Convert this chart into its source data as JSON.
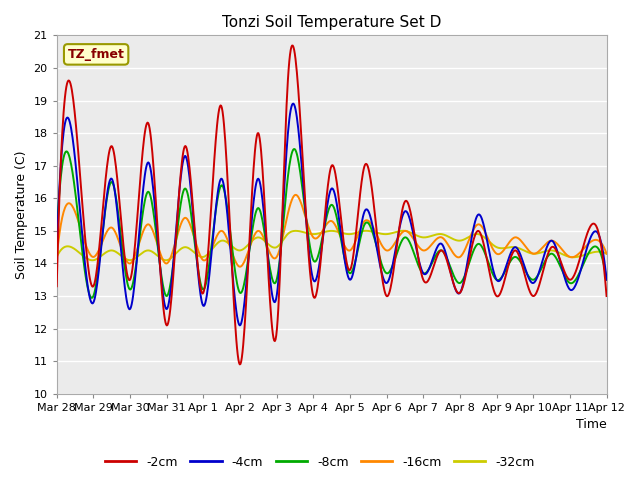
{
  "title": "Tonzi Soil Temperature Set D",
  "xlabel": "Time",
  "ylabel": "Soil Temperature (C)",
  "ylim": [
    10.0,
    21.0
  ],
  "yticks": [
    10.0,
    11.0,
    12.0,
    13.0,
    14.0,
    15.0,
    16.0,
    17.0,
    18.0,
    19.0,
    20.0,
    21.0
  ],
  "background_color": "#ebebeb",
  "grid_color": "#ffffff",
  "line_colors": {
    "-2cm": "#cc0000",
    "-4cm": "#0000cc",
    "-8cm": "#00aa00",
    "-16cm": "#ff8800",
    "-32cm": "#cccc00"
  },
  "legend_labels": [
    "-2cm",
    "-4cm",
    "-8cm",
    "-16cm",
    "-32cm"
  ],
  "xtick_labels": [
    "Mar 28",
    "Mar 29",
    "Mar 30",
    "Mar 31",
    "Apr 1",
    "Apr 2",
    "Apr 3",
    "Apr 4",
    "Apr 5",
    "Apr 6",
    "Apr 7",
    "Apr 8",
    "Apr 9",
    "Apr 10",
    "Apr 11",
    "Apr 12"
  ],
  "annotation_text": "TZ_fmet",
  "annotation_color": "#880000",
  "annotation_bg": "#ffffcc",
  "annotation_border": "#999900",
  "t2_knots_x": [
    0,
    0.4,
    1.0,
    1.5,
    2.0,
    2.5,
    3.0,
    3.5,
    4.0,
    4.5,
    5.0,
    5.5,
    6.0,
    6.3,
    6.5,
    7.0,
    7.5,
    8.0,
    8.4,
    9.0,
    9.5,
    10.0,
    10.5,
    11.0,
    11.5,
    12.0,
    12.5,
    13.0,
    13.5,
    14.0,
    14.5,
    15.0
  ],
  "t2_knots_y": [
    13.3,
    19.4,
    13.3,
    17.6,
    13.5,
    18.3,
    12.1,
    17.6,
    13.1,
    18.8,
    10.9,
    18.0,
    11.9,
    19.5,
    20.4,
    13.0,
    17.0,
    13.8,
    17.0,
    13.0,
    15.9,
    13.5,
    14.4,
    13.1,
    15.0,
    13.0,
    14.4,
    13.0,
    14.5,
    13.5,
    15.0,
    13.0
  ],
  "t4_knots_x": [
    0,
    0.4,
    1.0,
    1.5,
    2.0,
    2.5,
    3.0,
    3.5,
    4.0,
    4.5,
    5.0,
    5.5,
    6.0,
    6.3,
    6.5,
    7.0,
    7.5,
    8.0,
    8.4,
    9.0,
    9.5,
    10.0,
    10.5,
    11.0,
    11.5,
    12.0,
    12.5,
    13.0,
    13.5,
    14.0,
    14.5,
    15.0
  ],
  "t4_knots_y": [
    14.4,
    18.1,
    12.8,
    16.6,
    12.6,
    17.1,
    12.6,
    17.3,
    12.7,
    16.6,
    12.1,
    16.6,
    13.0,
    17.9,
    18.8,
    13.5,
    16.3,
    13.5,
    15.6,
    13.4,
    15.6,
    13.7,
    14.6,
    13.1,
    15.5,
    13.5,
    14.5,
    13.4,
    14.7,
    13.2,
    14.6,
    13.5
  ],
  "t8_knots_x": [
    0,
    0.4,
    1.0,
    1.5,
    2.0,
    2.5,
    3.0,
    3.5,
    4.0,
    4.5,
    5.0,
    5.5,
    6.0,
    6.3,
    6.5,
    7.0,
    7.5,
    8.0,
    8.4,
    9.0,
    9.5,
    10.0,
    10.5,
    11.0,
    11.5,
    12.0,
    12.5,
    13.0,
    13.5,
    14.0,
    14.5,
    15.0
  ],
  "t8_knots_y": [
    14.9,
    17.0,
    13.0,
    16.5,
    13.2,
    16.2,
    13.0,
    16.3,
    13.2,
    16.4,
    13.1,
    15.7,
    13.5,
    16.6,
    17.5,
    14.1,
    15.8,
    13.7,
    15.2,
    13.7,
    14.8,
    13.7,
    14.4,
    13.4,
    14.6,
    13.5,
    14.2,
    13.5,
    14.3,
    13.4,
    14.3,
    13.5
  ],
  "t16_knots_x": [
    0,
    0.4,
    1.0,
    1.5,
    2.0,
    2.5,
    3.0,
    3.5,
    4.0,
    4.5,
    5.0,
    5.5,
    6.0,
    6.3,
    6.5,
    7.0,
    7.5,
    8.0,
    8.4,
    9.0,
    9.5,
    10.0,
    10.5,
    11.0,
    11.5,
    12.0,
    12.5,
    13.0,
    13.5,
    14.0,
    14.5,
    15.0
  ],
  "t16_knots_y": [
    14.2,
    15.8,
    14.2,
    15.1,
    14.0,
    15.2,
    14.0,
    15.4,
    14.1,
    15.0,
    13.9,
    15.0,
    14.2,
    15.5,
    16.1,
    14.8,
    15.3,
    14.4,
    15.3,
    14.4,
    15.0,
    14.4,
    14.8,
    14.2,
    15.2,
    14.3,
    14.8,
    14.3,
    14.7,
    14.2,
    14.6,
    14.3
  ],
  "t32_knots_x": [
    0,
    0.4,
    1.0,
    1.5,
    2.0,
    2.5,
    3.0,
    3.5,
    4.0,
    4.5,
    5.0,
    5.5,
    6.0,
    6.3,
    6.5,
    7.0,
    7.5,
    8.0,
    8.4,
    9.0,
    9.5,
    10.0,
    10.5,
    11.0,
    11.5,
    12.0,
    12.5,
    13.0,
    13.5,
    14.0,
    14.5,
    15.0
  ],
  "t32_knots_y": [
    14.2,
    14.5,
    14.1,
    14.4,
    14.1,
    14.4,
    14.1,
    14.5,
    14.2,
    14.7,
    14.4,
    14.8,
    14.5,
    14.9,
    15.0,
    14.9,
    15.0,
    14.9,
    15.0,
    14.9,
    15.0,
    14.8,
    14.9,
    14.7,
    14.9,
    14.5,
    14.5,
    14.3,
    14.4,
    14.2,
    14.3,
    14.3
  ]
}
